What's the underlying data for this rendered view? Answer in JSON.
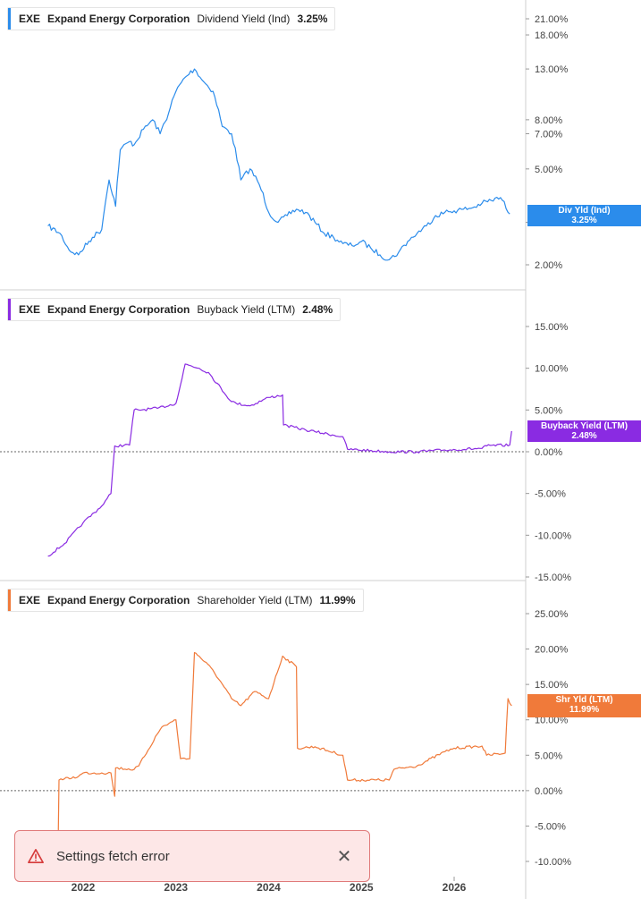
{
  "x_axis": {
    "tick_labels": [
      "2022",
      "2023",
      "2024",
      "2025",
      "2026"
    ]
  },
  "colors": {
    "dividend": "#2b8ceb",
    "buyback": "#8a2be2",
    "shareholder": "#f07a3a",
    "toast_bg": "#fde7e7",
    "toast_border": "#e07a7a"
  },
  "toast": {
    "message": "Settings fetch error",
    "icon": "warning-triangle-icon",
    "close_icon": "close-icon"
  },
  "chart_data": [
    {
      "type": "line",
      "legend": {
        "ticker": "EXE",
        "company": "Expand Energy Corporation",
        "metric": "Dividend Yield (Ind)",
        "value": "3.25%"
      },
      "tag": {
        "label": "Div Yld (Ind)",
        "value": "3.25%"
      },
      "scale": "log",
      "ylim": [
        1.8,
        24
      ],
      "y_ticks": [
        2,
        3,
        5,
        7,
        8,
        13,
        18,
        21
      ],
      "y_tick_labels": [
        "2.00%",
        "3.00%",
        "5.00%",
        "7.00%",
        "8.00%",
        "13.00%",
        "18.00%",
        "21.00%"
      ],
      "xlim": [
        2021.55,
        2026.75
      ],
      "x": [
        2021.62,
        2021.75,
        2021.85,
        2021.95,
        2022.1,
        2022.2,
        2022.28,
        2022.35,
        2022.4,
        2022.5,
        2022.55,
        2022.65,
        2022.75,
        2022.83,
        2022.92,
        2023.0,
        2023.1,
        2023.2,
        2023.3,
        2023.4,
        2023.5,
        2023.6,
        2023.7,
        2023.8,
        2023.9,
        2024.0,
        2024.1,
        2024.2,
        2024.3,
        2024.4,
        2024.5,
        2024.6,
        2024.7,
        2024.8,
        2024.9,
        2025.0,
        2025.1,
        2025.2,
        2025.3,
        2025.4,
        2025.5,
        2025.6,
        2025.7,
        2025.8,
        2025.9,
        2026.0,
        2026.1,
        2026.2,
        2026.3,
        2026.4,
        2026.5,
        2026.6
      ],
      "y": [
        2.9,
        2.7,
        2.3,
        2.2,
        2.6,
        2.8,
        4.5,
        3.5,
        6.0,
        6.5,
        6.3,
        7.3,
        8.0,
        7.0,
        8.5,
        10.5,
        12.0,
        13.0,
        11.5,
        10.5,
        7.5,
        7.0,
        4.5,
        5.0,
        4.3,
        3.3,
        3.0,
        3.2,
        3.4,
        3.3,
        3.0,
        2.7,
        2.6,
        2.45,
        2.4,
        2.5,
        2.35,
        2.2,
        2.1,
        2.25,
        2.5,
        2.7,
        2.9,
        3.2,
        3.3,
        3.35,
        3.4,
        3.45,
        3.6,
        3.7,
        3.8,
        3.25
      ]
    },
    {
      "type": "line",
      "legend": {
        "ticker": "EXE",
        "company": "Expand Energy Corporation",
        "metric": "Buyback Yield (LTM)",
        "value": "2.48%"
      },
      "tag": {
        "label": "Buyback Yield (LTM)",
        "value": "2.48%"
      },
      "scale": "linear",
      "ylim": [
        -15,
        15
      ],
      "y_ticks": [
        -15,
        -10,
        -5,
        0,
        5,
        10,
        15
      ],
      "y_tick_labels": [
        "-15.00%",
        "-10.00%",
        "-5.00%",
        "0.00%",
        "5.00%",
        "10.00%",
        "15.00%"
      ],
      "zero_line": true,
      "xlim": [
        2021.55,
        2026.75
      ],
      "x": [
        2021.62,
        2021.8,
        2022.0,
        2022.2,
        2022.3,
        2022.34,
        2022.5,
        2022.55,
        2022.6,
        2022.8,
        2023.0,
        2023.05,
        2023.1,
        2023.25,
        2023.35,
        2023.6,
        2023.65,
        2023.8,
        2024.0,
        2024.15,
        2024.16,
        2024.4,
        2024.5,
        2024.8,
        2024.85,
        2025.3,
        2025.6,
        2025.9,
        2026.3,
        2026.35,
        2026.6,
        2026.62
      ],
      "y": [
        -12.5,
        -11.0,
        -8.5,
        -6.5,
        -5.0,
        0.7,
        0.8,
        5.0,
        5.0,
        5.2,
        5.8,
        8.0,
        10.5,
        10.0,
        9.5,
        6.0,
        5.8,
        5.5,
        6.5,
        6.8,
        3.2,
        2.6,
        2.4,
        1.8,
        0.3,
        0.0,
        0.0,
        0.2,
        0.4,
        0.7,
        0.8,
        2.48
      ]
    },
    {
      "type": "line",
      "legend": {
        "ticker": "EXE",
        "company": "Expand Energy Corporation",
        "metric": "Shareholder Yield (LTM)",
        "value": "11.99%"
      },
      "tag": {
        "label": "Shr Yld (LTM)",
        "value": "11.99%"
      },
      "scale": "linear",
      "ylim": [
        -10,
        25
      ],
      "y_ticks": [
        -10,
        -5,
        0,
        5,
        10,
        15,
        20,
        25
      ],
      "y_tick_labels": [
        "-10.00%",
        "-5.00%",
        "0.00%",
        "5.00%",
        "10.00%",
        "15.00%",
        "20.00%",
        "25.00%"
      ],
      "zero_line": true,
      "xlim": [
        2021.55,
        2026.75
      ],
      "x": [
        2021.6,
        2021.73,
        2021.74,
        2021.95,
        2022.0,
        2022.2,
        2022.3,
        2022.34,
        2022.35,
        2022.55,
        2022.6,
        2022.8,
        2022.85,
        2023.0,
        2023.05,
        2023.15,
        2023.2,
        2023.25,
        2023.4,
        2023.6,
        2023.7,
        2023.85,
        2024.0,
        2024.15,
        2024.3,
        2024.31,
        2024.5,
        2024.8,
        2024.85,
        2025.3,
        2025.35,
        2025.6,
        2025.9,
        2026.0,
        2026.3,
        2026.35,
        2026.55,
        2026.58,
        2026.62
      ],
      "y": [
        -8.0,
        -8.0,
        1.5,
        2.0,
        2.5,
        2.5,
        2.5,
        -0.8,
        3.2,
        3.0,
        3.5,
        8.0,
        9.0,
        10.0,
        4.5,
        4.5,
        19.5,
        19.0,
        17.0,
        13.0,
        12.0,
        14.0,
        13.0,
        19.0,
        17.5,
        6.0,
        6.2,
        5.0,
        1.5,
        1.5,
        3.0,
        3.5,
        5.5,
        6.0,
        6.3,
        5.0,
        5.3,
        13.0,
        11.99
      ]
    }
  ]
}
